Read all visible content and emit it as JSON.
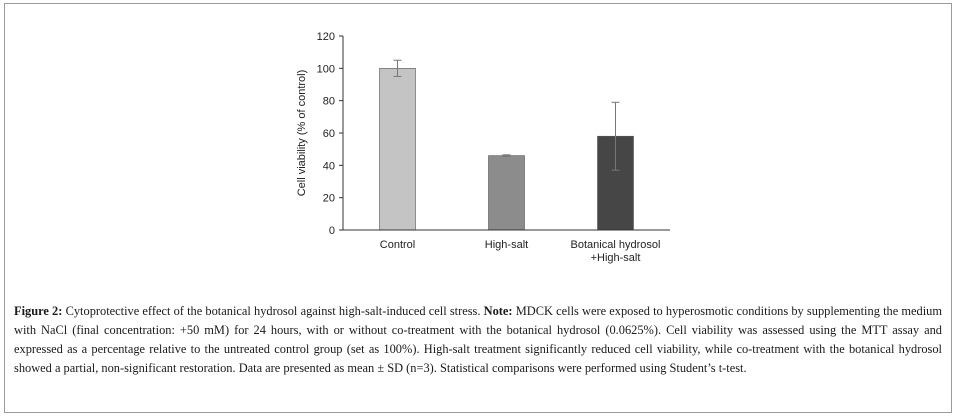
{
  "chart_data": {
    "type": "bar",
    "categories": [
      "Control",
      "High-salt",
      "Botanical hydrosol\n+High-salt"
    ],
    "values": [
      100,
      46,
      58
    ],
    "errors": [
      5,
      0.5,
      21
    ],
    "bar_colors": [
      "#c4c4c4",
      "#8c8c8c",
      "#464646"
    ],
    "xlabel": "",
    "ylabel": "Cell viability (% of control)",
    "ylim": [
      0,
      120
    ],
    "yticks": [
      0,
      20,
      40,
      60,
      80,
      100,
      120
    ],
    "grid": false
  },
  "caption": {
    "figure_label": "Figure 2:",
    "title": "Cytoprotective effect of the botanical hydrosol against high-salt-induced cell stress.",
    "note_label": "Note:",
    "note": "MDCK cells were exposed to hyperosmotic conditions by supplementing the medium with NaCl (final concentration: +50 mM) for 24 hours, with or without co-treatment with the botanical hydrosol (0.0625%). Cell viability was assessed using the MTT assay and expressed as a percentage relative to the untreated control group (set as 100%). High-salt treatment significantly reduced cell viability, while co-treatment with the botanical hydrosol showed a partial, non-significant restoration. Data are presented as mean ± SD (n=3). Statistical comparisons were performed using Student’s t-test."
  }
}
